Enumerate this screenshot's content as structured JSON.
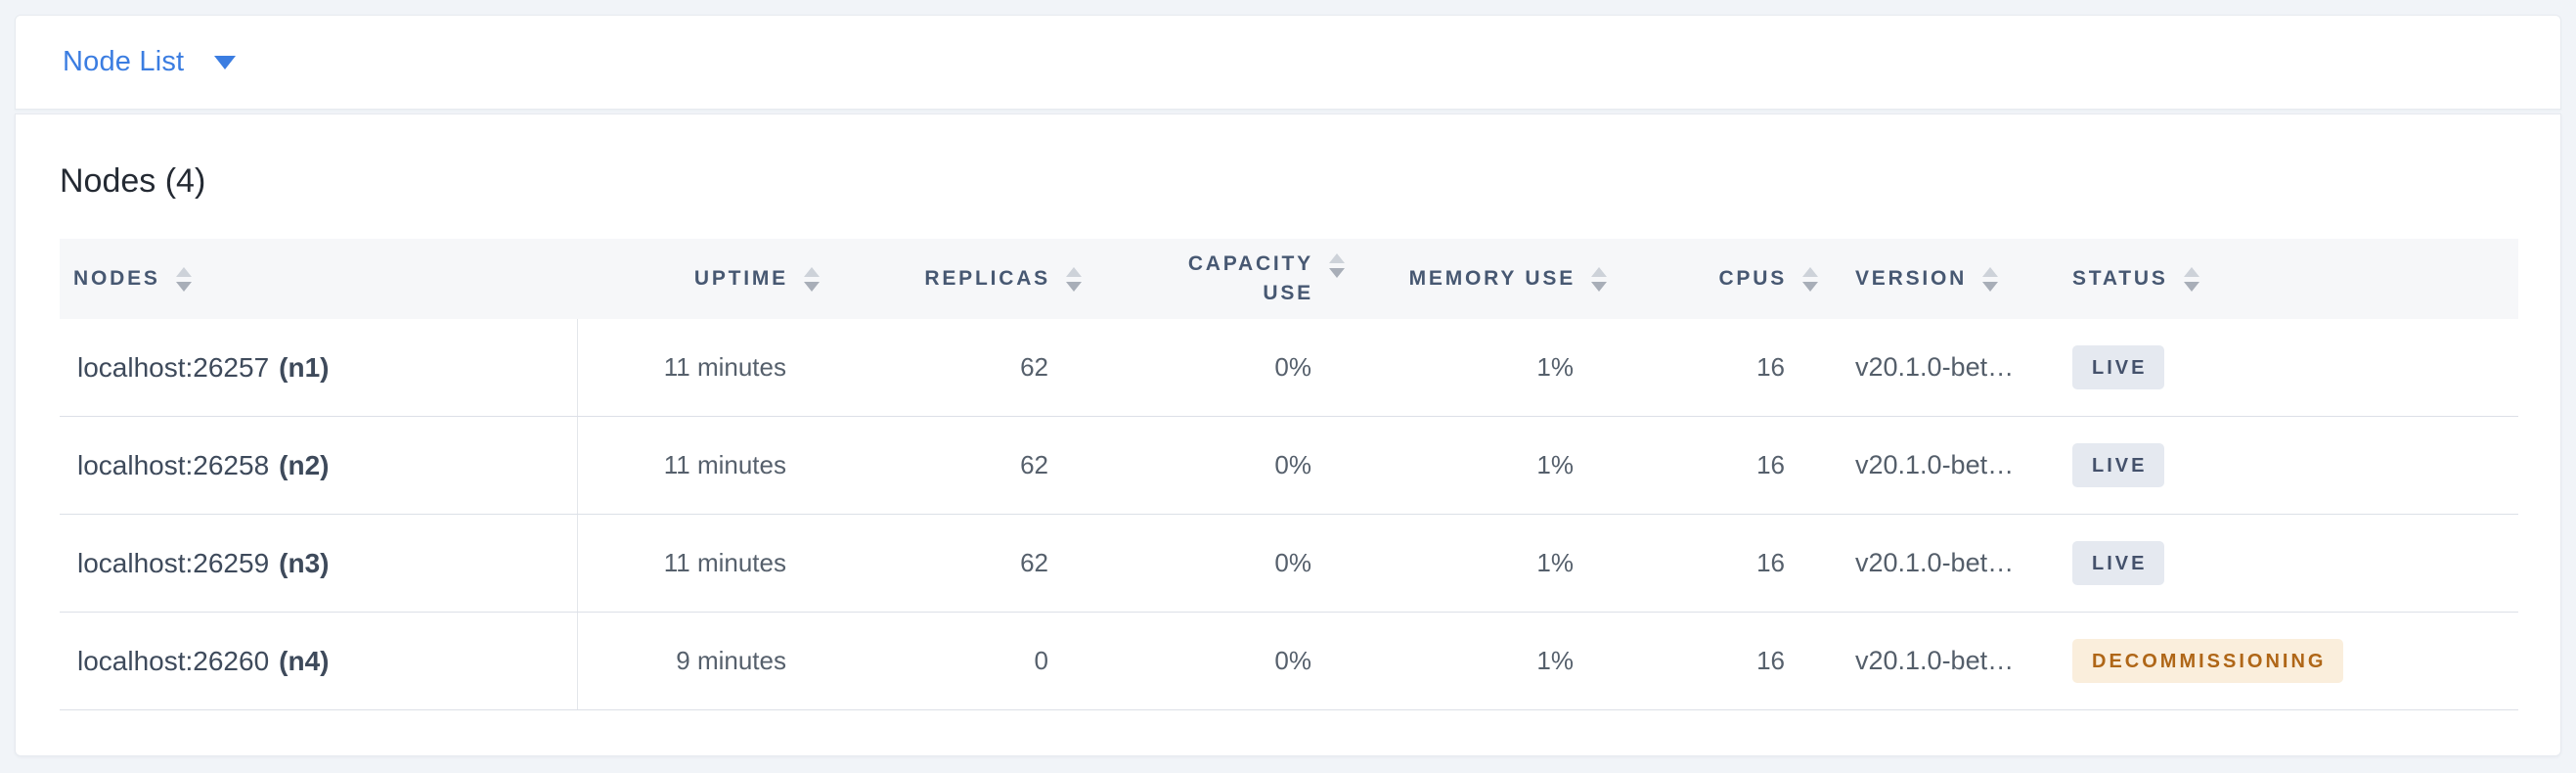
{
  "colors": {
    "accent_blue": "#3B7DE1",
    "page_bg": "#F1F4F8",
    "header_band_bg": "#F6F7F9",
    "header_text": "#475872",
    "row_border": "#DCE0E7",
    "live_badge_bg": "#E5E9F0",
    "live_badge_text": "#44516B",
    "decommissioning_badge_bg": "#FAEEDC",
    "decommissioning_badge_text": "#AF6617"
  },
  "icons": {
    "dropdown_caret": "caret-down",
    "column_sort": "sort-arrows-up-down"
  },
  "topbar": {
    "view_selector_label": "Node List"
  },
  "main": {
    "heading": "Nodes (4)"
  },
  "table": {
    "columns": [
      {
        "label": "NODES"
      },
      {
        "label": "UPTIME"
      },
      {
        "label": "REPLICAS"
      },
      {
        "label": "CAPACITY USE",
        "line1": "CAPACITY",
        "line2": "USE"
      },
      {
        "label": "MEMORY USE"
      },
      {
        "label": "CPUS"
      },
      {
        "label": "VERSION"
      },
      {
        "label": "STATUS"
      }
    ],
    "rows": [
      {
        "address": "localhost:26257",
        "node_id": "(n1)",
        "uptime": "11 minutes",
        "replicas": "62",
        "capacity_use": "0%",
        "memory_use": "1%",
        "cpus": "16",
        "version": "v20.1.0-bet…",
        "status": "LIVE",
        "status_type": "live"
      },
      {
        "address": "localhost:26258",
        "node_id": "(n2)",
        "uptime": "11 minutes",
        "replicas": "62",
        "capacity_use": "0%",
        "memory_use": "1%",
        "cpus": "16",
        "version": "v20.1.0-bet…",
        "status": "LIVE",
        "status_type": "live"
      },
      {
        "address": "localhost:26259",
        "node_id": "(n3)",
        "uptime": "11 minutes",
        "replicas": "62",
        "capacity_use": "0%",
        "memory_use": "1%",
        "cpus": "16",
        "version": "v20.1.0-bet…",
        "status": "LIVE",
        "status_type": "live"
      },
      {
        "address": "localhost:26260",
        "node_id": "(n4)",
        "uptime": "9 minutes",
        "replicas": "0",
        "capacity_use": "0%",
        "memory_use": "1%",
        "cpus": "16",
        "version": "v20.1.0-bet…",
        "status": "DECOMMISSIONING",
        "status_type": "decommissioning"
      }
    ]
  }
}
